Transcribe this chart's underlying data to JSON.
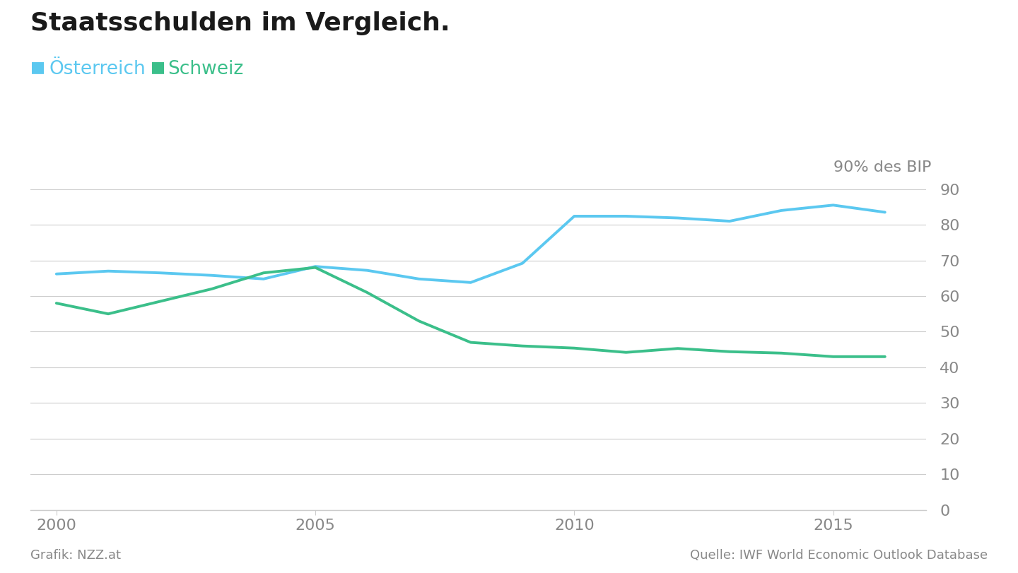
{
  "title": "Staatsschulden im Vergleich.",
  "legend_austria": "Österreich",
  "legend_schweiz": "Schweiz",
  "ylabel_right": "90% des BIP",
  "footer_left": "Grafik: NZZ.at",
  "footer_right": "Quelle: IWF World Economic Outlook Database",
  "austria_color": "#5bc8f0",
  "schweiz_color": "#3bbf8a",
  "background_color": "#ffffff",
  "grid_color": "#cccccc",
  "title_color": "#1a1a1a",
  "label_color": "#888888",
  "tick_color": "#888888",
  "years": [
    2000,
    2001,
    2002,
    2003,
    2004,
    2005,
    2006,
    2007,
    2008,
    2009,
    2010,
    2011,
    2012,
    2013,
    2014,
    2015,
    2016
  ],
  "austria": [
    66.2,
    67.0,
    66.5,
    65.8,
    64.8,
    68.3,
    67.2,
    64.8,
    63.8,
    69.2,
    82.4,
    82.4,
    81.9,
    81.0,
    84.0,
    85.5,
    83.5
  ],
  "schweiz": [
    58.0,
    55.0,
    58.5,
    62.0,
    66.5,
    68.0,
    61.0,
    53.0,
    47.0,
    46.0,
    45.4,
    44.2,
    45.3,
    44.4,
    44.0,
    43.0,
    43.0
  ],
  "ylim": [
    0,
    90
  ],
  "yticks": [
    0,
    10,
    20,
    30,
    40,
    50,
    60,
    70,
    80,
    90
  ],
  "xticks": [
    2000,
    2005,
    2010,
    2015
  ],
  "xlim_start": 1999.5,
  "xlim_end": 2016.8
}
